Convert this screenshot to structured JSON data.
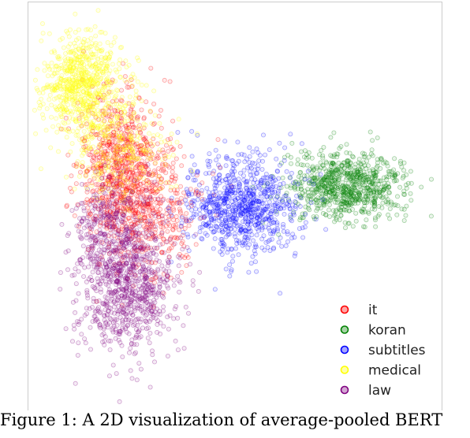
{
  "caption": "Figure 1: A 2D visualization of average-pooled BERT",
  "chart_data": {
    "type": "scatter",
    "title": "",
    "xlabel": "",
    "ylabel": "",
    "xlim": [
      0,
      100
    ],
    "ylim": [
      0,
      100
    ],
    "grid": false,
    "legend_position": "bottom-right",
    "marker": "hollow-circle",
    "series": [
      {
        "name": "it",
        "color": "#ff0000",
        "clusters": [
          {
            "cx": 22,
            "cy": 60,
            "sx": 5,
            "sy": 9,
            "n": 700
          },
          {
            "cx": 30,
            "cy": 48,
            "sx": 6,
            "sy": 8,
            "n": 400
          }
        ]
      },
      {
        "name": "koran",
        "color": "#008000",
        "clusters": [
          {
            "cx": 77,
            "cy": 55,
            "sx": 7,
            "sy": 4,
            "n": 800
          }
        ]
      },
      {
        "name": "subtitles",
        "color": "#0000ff",
        "clusters": [
          {
            "cx": 52,
            "cy": 50,
            "sx": 7,
            "sy": 6,
            "n": 800
          }
        ]
      },
      {
        "name": "medical",
        "color": "#ffff00",
        "clusters": [
          {
            "cx": 13,
            "cy": 80,
            "sx": 5,
            "sy": 6,
            "n": 700
          },
          {
            "cx": 22,
            "cy": 65,
            "sx": 6,
            "sy": 7,
            "n": 300
          }
        ]
      },
      {
        "name": "law",
        "color": "#800080",
        "clusters": [
          {
            "cx": 24,
            "cy": 30,
            "sx": 6,
            "sy": 8,
            "n": 800
          },
          {
            "cx": 20,
            "cy": 45,
            "sx": 5,
            "sy": 6,
            "n": 300
          }
        ]
      }
    ]
  }
}
